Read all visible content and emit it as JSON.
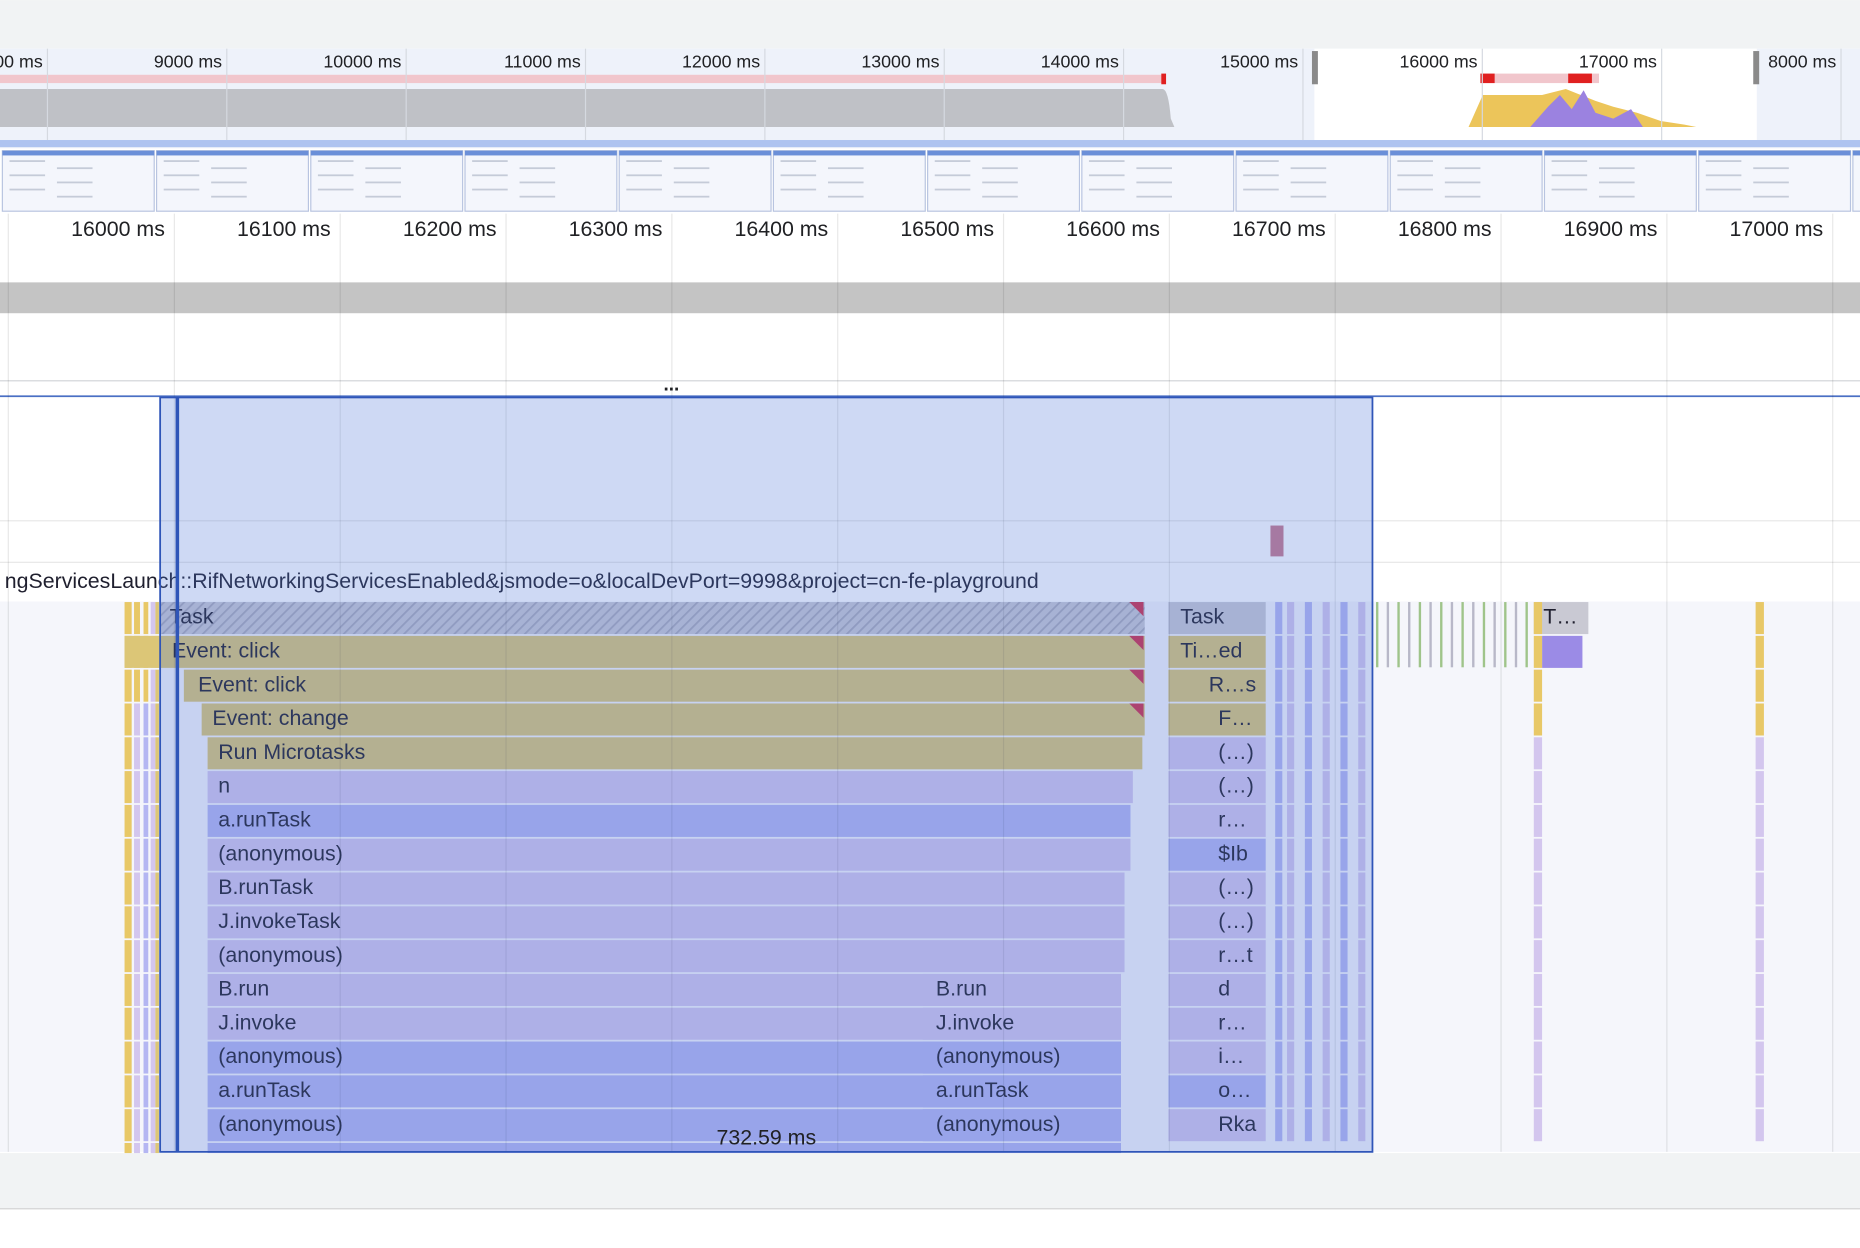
{
  "overview_ticks": [
    "00 ms",
    "9000 ms",
    "10000 ms",
    "11000 ms",
    "12000 ms",
    "13000 ms",
    "14000 ms",
    "15000 ms",
    "16000 ms",
    "17000 ms",
    "8000 ms"
  ],
  "timeline_ticks": [
    "16000 ms",
    "16100 ms",
    "16200 ms",
    "16300 ms",
    "16400 ms",
    "16500 ms",
    "16600 ms",
    "16700 ms",
    "16800 ms",
    "16900 ms",
    "17000 ms"
  ],
  "resizer": "...",
  "track_url": "ngServicesLaunch::RifNetworkingServicesEnabled&jsmode=o&localDevPort=9998&project=cn-fe-playground",
  "flame": {
    "main": [
      "Task",
      "Event: click",
      "Event: click",
      "Event: change",
      "Run Microtasks",
      "n",
      "a.runTask",
      "(anonymous)",
      "B.runTask",
      "J.invokeTask",
      "(anonymous)",
      "B.run",
      "J.invoke",
      "(anonymous)",
      "a.runTask",
      "(anonymous)"
    ],
    "right": [
      "Task",
      "Ti…ed",
      "R…s",
      "F…",
      "(…)",
      "(…)",
      "r…",
      "$Ib",
      "(…)",
      "(…)",
      "r…t",
      "d",
      "r…",
      "i…",
      "o…",
      "Rka"
    ],
    "middle": [
      "B.run",
      "J.invoke",
      "(anonymous)",
      "a.runTask",
      "(anonymous)"
    ],
    "extra": "T…"
  },
  "selection_duration": "732.59 ms"
}
